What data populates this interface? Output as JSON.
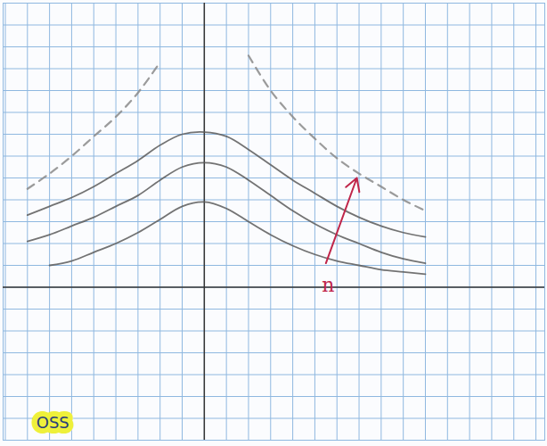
{
  "chart_data": {
    "type": "line",
    "x": [
      -8,
      -7,
      -6,
      -5,
      -4,
      -3,
      -2,
      -1,
      0,
      1,
      2,
      3,
      4,
      5,
      6,
      7,
      8,
      9,
      10
    ],
    "series": [
      {
        "color": "#5a5a5a",
        "line_style": "solid",
        "values": [
          null,
          1.0,
          1.2,
          1.6,
          2.0,
          2.5,
          3.1,
          3.7,
          3.9,
          3.6,
          3.0,
          2.4,
          1.9,
          1.5,
          1.2,
          1.0,
          0.8,
          0.7,
          0.6
        ]
      },
      {
        "color": "#5a5a5a",
        "line_style": "solid",
        "values": [
          2.1,
          2.4,
          2.8,
          3.2,
          3.7,
          4.2,
          4.9,
          5.5,
          5.7,
          5.5,
          4.9,
          4.2,
          3.5,
          2.9,
          2.4,
          2.0,
          1.6,
          1.3,
          1.1
        ]
      },
      {
        "color": "#5a5a5a",
        "line_style": "solid",
        "values": [
          3.3,
          3.7,
          4.1,
          4.6,
          5.2,
          5.8,
          6.5,
          7.0,
          7.1,
          6.9,
          6.3,
          5.6,
          4.9,
          4.3,
          3.7,
          3.2,
          2.8,
          2.5,
          2.3
        ]
      },
      {
        "color": "#8a8a8a",
        "line_style": "dashed",
        "values": [
          4.5,
          5.2,
          6.0,
          6.9,
          7.8,
          8.9,
          10.3,
          null,
          null,
          null,
          10.6,
          9.0,
          7.8,
          6.8,
          5.9,
          5.2,
          4.6,
          4.0,
          3.5
        ]
      }
    ],
    "xlim": [
      -9.1,
      15.4
    ],
    "ylim": [
      -7,
      13
    ],
    "xticks": [
      -9,
      -8,
      -7,
      -6,
      -5,
      -4,
      -3,
      -2,
      -1,
      0,
      1,
      2,
      3,
      4,
      5,
      6,
      7,
      8,
      9,
      10,
      11,
      12,
      13,
      14,
      15
    ],
    "yticks": [
      -7,
      -6,
      -5,
      -4,
      -3,
      -2,
      -1,
      0,
      1,
      2,
      3,
      4,
      5,
      6,
      7,
      8,
      9,
      10,
      11,
      12,
      13
    ],
    "grid": true,
    "tick_labels": false,
    "annotations": [
      {
        "text": "n",
        "x": 5.6,
        "y": 0.1,
        "color": "#c0264a",
        "arrow": {
          "x1": 5.5,
          "y1": 1.1,
          "x2": 6.9,
          "y2": 5.0
        }
      },
      {
        "text": "OSS",
        "x": -7.6,
        "y": -6.2
      }
    ]
  }
}
